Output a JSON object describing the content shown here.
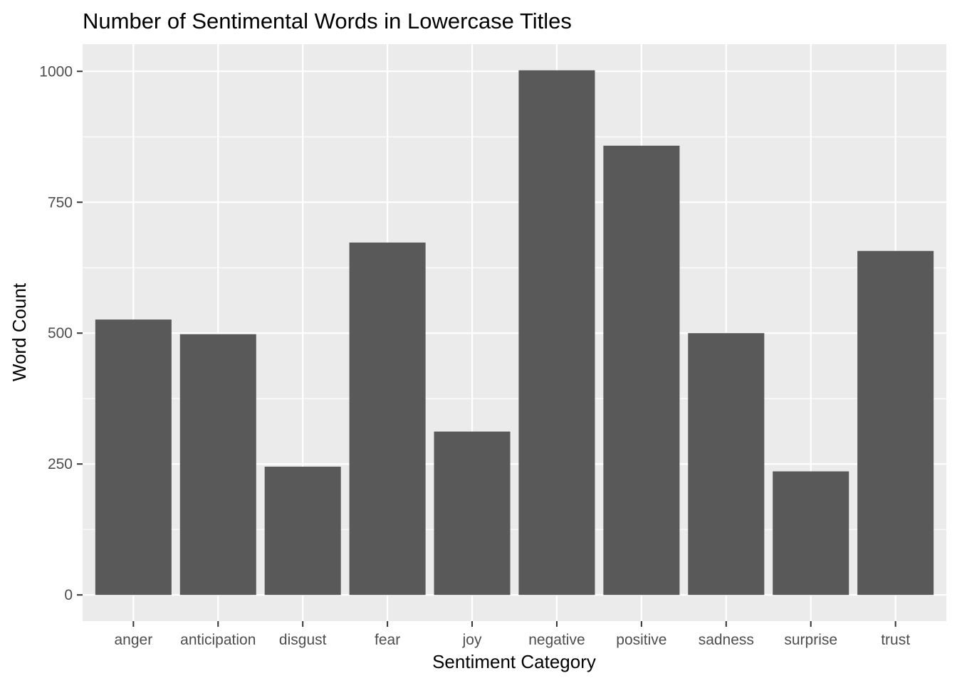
{
  "chart_data": {
    "type": "bar",
    "title": "Number of Sentimental Words in Lowercase Titles",
    "xlabel": "Sentiment Category",
    "ylabel": "Word Count",
    "categories": [
      "anger",
      "anticipation",
      "disgust",
      "fear",
      "joy",
      "negative",
      "positive",
      "sadness",
      "surprise",
      "trust"
    ],
    "values": [
      526,
      498,
      245,
      673,
      312,
      1002,
      858,
      500,
      236,
      657
    ],
    "ylim": [
      -50,
      1052
    ],
    "yticks": [
      0,
      250,
      500,
      750,
      1000
    ],
    "grid": true,
    "colors": {
      "bar": "#595959",
      "panel": "#ebebeb",
      "grid": "#ffffff"
    }
  }
}
